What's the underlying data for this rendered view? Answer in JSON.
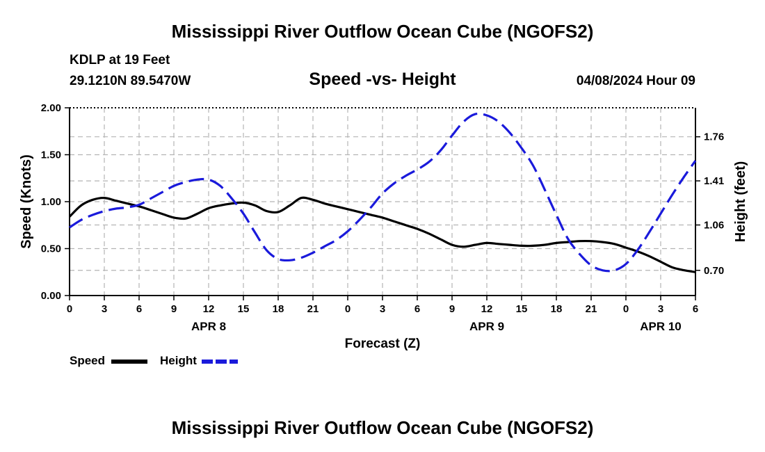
{
  "header": {
    "title": "Mississippi River Outflow Ocean Cube (NGOFS2)",
    "station": "KDLP at 19 Feet",
    "coords": "29.1210N  89.5470W",
    "subtitle": "Speed -vs- Height",
    "datetime": "04/08/2024 Hour 09"
  },
  "footer": {
    "title": "Mississippi River Outflow Ocean Cube (NGOFS2)"
  },
  "legend": {
    "speed_label": "Speed",
    "height_label": "Height"
  },
  "colors": {
    "speed": "#000000",
    "height": "#1a1adb",
    "grid": "#b4b4b4"
  },
  "chart_data": {
    "type": "line",
    "xlabel": "Forecast (Z)",
    "ylabel_left": "Speed (Knots)",
    "ylabel_right": "Height (feet)",
    "xlim": [
      0,
      54
    ],
    "x_ticks": [
      0,
      3,
      6,
      9,
      12,
      15,
      18,
      21,
      24,
      27,
      30,
      33,
      36,
      39,
      42,
      45,
      48,
      51,
      54
    ],
    "x_tick_labels": [
      "0",
      "3",
      "6",
      "9",
      "12",
      "15",
      "18",
      "21",
      "0",
      "3",
      "6",
      "9",
      "12",
      "15",
      "18",
      "21",
      "0",
      "3",
      "6"
    ],
    "date_labels": [
      {
        "x": 12,
        "label": "APR 8"
      },
      {
        "x": 36,
        "label": "APR 9"
      },
      {
        "x": 51,
        "label": "APR 10"
      }
    ],
    "y_left": {
      "lim": [
        0,
        2.0
      ],
      "ticks": [
        0,
        0.5,
        1.0,
        1.5,
        2.0
      ],
      "tick_labels": [
        "0.00",
        "0.50",
        "1.00",
        "1.50",
        "2.00"
      ]
    },
    "y_right": {
      "lim": [
        0.5,
        1.99
      ],
      "ticks": [
        0.7,
        1.06,
        1.41,
        1.76
      ],
      "tick_labels": [
        "0.70",
        "1.06",
        "1.41",
        "1.76"
      ]
    },
    "series": [
      {
        "name": "Speed",
        "axis": "left",
        "style": "solid",
        "x": [
          0,
          1,
          2,
          3,
          4,
          5,
          6,
          7,
          8,
          9,
          10,
          11,
          12,
          13,
          14,
          15,
          16,
          17,
          18,
          19,
          20,
          21,
          22,
          23,
          24,
          25,
          26,
          27,
          28,
          29,
          30,
          31,
          32,
          33,
          34,
          35,
          36,
          37,
          38,
          39,
          40,
          41,
          42,
          43,
          44,
          45,
          46,
          47,
          48,
          49,
          50,
          51,
          52,
          53,
          54
        ],
        "values": [
          0.84,
          0.96,
          1.02,
          1.04,
          1.01,
          0.98,
          0.95,
          0.91,
          0.87,
          0.83,
          0.82,
          0.87,
          0.93,
          0.96,
          0.98,
          0.99,
          0.96,
          0.9,
          0.89,
          0.96,
          1.04,
          1.02,
          0.98,
          0.95,
          0.92,
          0.89,
          0.86,
          0.83,
          0.79,
          0.75,
          0.71,
          0.66,
          0.6,
          0.54,
          0.52,
          0.54,
          0.56,
          0.55,
          0.54,
          0.53,
          0.53,
          0.54,
          0.56,
          0.57,
          0.58,
          0.58,
          0.57,
          0.55,
          0.51,
          0.47,
          0.42,
          0.36,
          0.3,
          0.27,
          0.25
        ]
      },
      {
        "name": "Height",
        "axis": "right",
        "style": "dashed",
        "x": [
          0,
          1,
          2,
          3,
          4,
          5,
          6,
          7,
          8,
          9,
          10,
          11,
          12,
          13,
          14,
          15,
          16,
          17,
          18,
          19,
          20,
          21,
          22,
          23,
          24,
          25,
          26,
          27,
          28,
          29,
          30,
          31,
          32,
          33,
          34,
          35,
          36,
          37,
          38,
          39,
          40,
          41,
          42,
          43,
          44,
          45,
          46,
          47,
          48,
          49,
          50,
          51,
          52,
          53,
          54
        ],
        "values": [
          1.04,
          1.1,
          1.14,
          1.17,
          1.19,
          1.2,
          1.22,
          1.27,
          1.32,
          1.37,
          1.4,
          1.42,
          1.42,
          1.37,
          1.27,
          1.15,
          1.0,
          0.86,
          0.79,
          0.78,
          0.8,
          0.84,
          0.89,
          0.94,
          1.01,
          1.1,
          1.2,
          1.31,
          1.39,
          1.45,
          1.5,
          1.56,
          1.65,
          1.77,
          1.88,
          1.94,
          1.93,
          1.88,
          1.79,
          1.67,
          1.53,
          1.34,
          1.14,
          0.95,
          0.83,
          0.74,
          0.7,
          0.7,
          0.75,
          0.86,
          1.0,
          1.15,
          1.3,
          1.44,
          1.57
        ]
      }
    ]
  }
}
